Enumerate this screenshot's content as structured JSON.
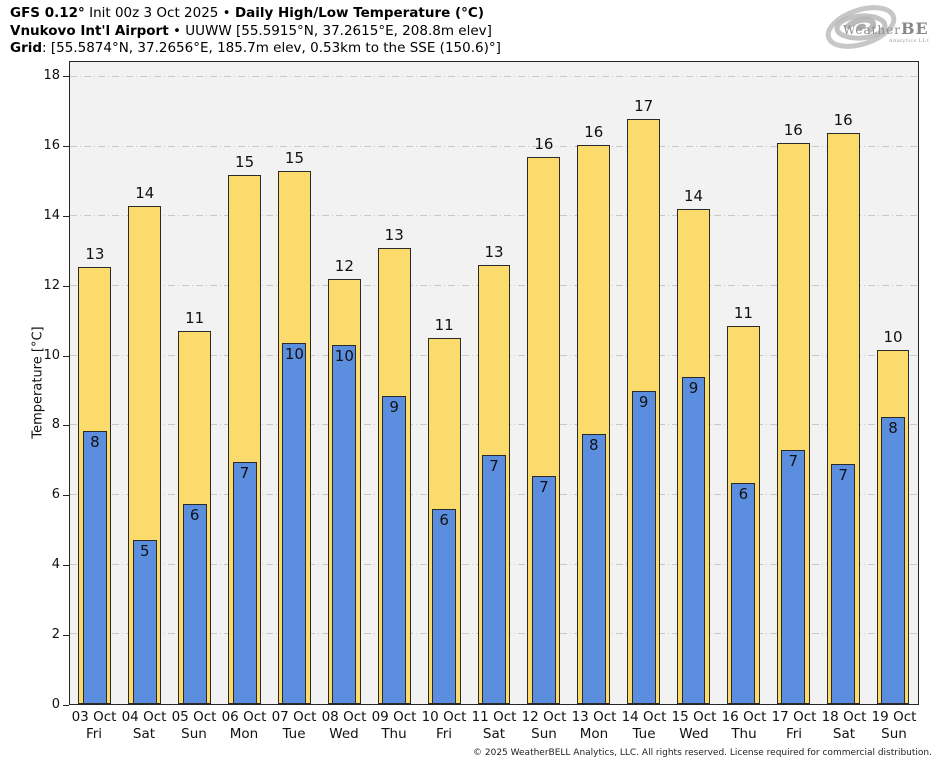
{
  "header": {
    "model_bold": "GFS 0.12°",
    "init_text": " Init 00z 3 Oct 2025 • ",
    "title_bold": "Daily High/Low Temperature (°C)",
    "station_bold": "Vnukovo Int'l Airport",
    "station_rest": " • UUWW [55.5915°N, 37.2615°E, 208.8m elev]",
    "grid_bold": "Grid",
    "grid_rest": ": [55.5874°N, 37.2656°E, 185.7m elev, 0.53km to the SSE (150.6)°]"
  },
  "logo": {
    "brand_first": "Weather",
    "brand_second": "BELL",
    "brand_sub": "Analytics LLC"
  },
  "chart_data": {
    "type": "bar",
    "title": "GFS 0.12° Init 00z 3 Oct 2025 • Daily High/Low Temperature (°C) — Vnukovo Int'l Airport",
    "xlabel": "",
    "ylabel": "Temperature [°C]",
    "ylim": [
      0,
      18.43
    ],
    "yticks": [
      0,
      2,
      4,
      6,
      8,
      10,
      12,
      14,
      16,
      18
    ],
    "grid": "horizontal dash-dot gridlines every 2°C",
    "legend": "none (yellow = daily high, blue = daily low)",
    "plot_background": "#f2f2f2",
    "categories": [
      {
        "date": "03 Oct",
        "day": "Fri"
      },
      {
        "date": "04 Oct",
        "day": "Sat"
      },
      {
        "date": "05 Oct",
        "day": "Sun"
      },
      {
        "date": "06 Oct",
        "day": "Mon"
      },
      {
        "date": "07 Oct",
        "day": "Tue"
      },
      {
        "date": "08 Oct",
        "day": "Wed"
      },
      {
        "date": "09 Oct",
        "day": "Thu"
      },
      {
        "date": "10 Oct",
        "day": "Fri"
      },
      {
        "date": "11 Oct",
        "day": "Sat"
      },
      {
        "date": "12 Oct",
        "day": "Sun"
      },
      {
        "date": "13 Oct",
        "day": "Mon"
      },
      {
        "date": "14 Oct",
        "day": "Tue"
      },
      {
        "date": "15 Oct",
        "day": "Wed"
      },
      {
        "date": "16 Oct",
        "day": "Thu"
      },
      {
        "date": "17 Oct",
        "day": "Fri"
      },
      {
        "date": "18 Oct",
        "day": "Sat"
      },
      {
        "date": "19 Oct",
        "day": "Sun"
      }
    ],
    "series": [
      {
        "name": "Daily High",
        "color": "#fbdb6b",
        "values": [
          12.55,
          14.3,
          10.7,
          15.2,
          15.3,
          12.2,
          13.1,
          10.5,
          12.6,
          15.7,
          16.05,
          16.8,
          14.2,
          10.85,
          16.1,
          16.4,
          10.15
        ],
        "labels": [
          "13",
          "14",
          "11",
          "15",
          "15",
          "12",
          "13",
          "11",
          "13",
          "16",
          "16",
          "17",
          "14",
          "11",
          "16",
          "16",
          "10"
        ]
      },
      {
        "name": "Daily Low",
        "color": "#5c8ee0",
        "values": [
          7.85,
          4.7,
          5.75,
          6.95,
          10.35,
          10.3,
          8.85,
          5.6,
          7.15,
          6.55,
          7.75,
          9.0,
          9.4,
          6.35,
          7.3,
          6.9,
          8.25
        ],
        "labels": [
          "8",
          "5",
          "6",
          "7",
          "10",
          "10",
          "9",
          "6",
          "7",
          "7",
          "8",
          "9",
          "9",
          "6",
          "7",
          "7",
          "8"
        ]
      }
    ]
  },
  "footer": "© 2025 WeatherBELL Analytics, LLC. All rights reserved. License required for commercial distribution."
}
